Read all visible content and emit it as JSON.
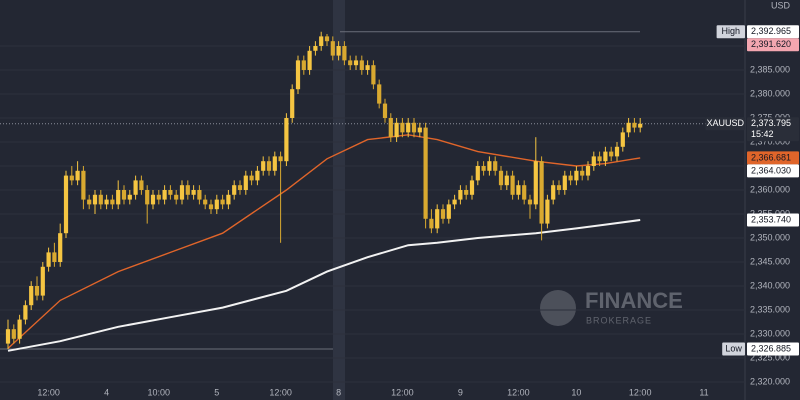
{
  "chart_data": {
    "type": "candlestick",
    "currency": "USD",
    "categories": [
      null,
      null,
      null,
      null,
      null,
      null,
      null,
      "12:00",
      null,
      null,
      null,
      null,
      null,
      null,
      null,
      null,
      null,
      "4",
      null,
      null,
      null,
      null,
      null,
      null,
      null,
      null,
      "10:00",
      null,
      null,
      null,
      null,
      null,
      null,
      null,
      null,
      null,
      "5",
      null,
      null,
      null,
      null,
      null,
      null,
      null,
      null,
      null,
      null,
      "12:00",
      null,
      null,
      null,
      null,
      null,
      null,
      null,
      null,
      null,
      "8",
      null,
      null,
      null,
      null,
      null,
      null,
      null,
      null,
      null,
      null,
      "12:00",
      null,
      null,
      null,
      null,
      null,
      null,
      null,
      null,
      null,
      "9",
      null,
      null,
      null,
      null,
      null,
      null,
      null,
      null,
      null,
      "12:00",
      null,
      null,
      null,
      null,
      null,
      null,
      null,
      null,
      null,
      "10",
      null,
      null,
      null,
      null,
      null,
      null,
      null,
      null,
      null,
      null,
      "12:00",
      null,
      null,
      null,
      null,
      null,
      null,
      null,
      null,
      null,
      null,
      "11"
    ],
    "open": [
      2328,
      2331,
      2329,
      2333,
      2336,
      2340,
      2338,
      2344,
      2347,
      2345,
      2351,
      2363,
      2362,
      2364,
      2358,
      2357,
      2359,
      2357,
      2358,
      2357,
      2360,
      2358,
      2359,
      2362,
      2360,
      2357,
      2359,
      2358,
      2360,
      2359,
      2358,
      2361,
      2359,
      2360,
      2358,
      2357,
      2356,
      2358,
      2357,
      2359,
      2361,
      2360,
      2363,
      2362,
      2364,
      2366,
      2364,
      2367,
      2366,
      2375,
      2381,
      2387,
      2385,
      2389,
      2390,
      2392,
      2391,
      2388,
      2390,
      2387,
      2386,
      2387,
      2385,
      2386,
      2382,
      2378,
      2375,
      2371,
      2374,
      2372,
      2374,
      2372,
      2373,
      2354,
      2352,
      2356,
      2354,
      2357,
      2358,
      2360,
      2359,
      2362,
      2365,
      2364,
      2366,
      2364,
      2361,
      2363,
      2359,
      2361,
      2358,
      2357,
      2366,
      2353,
      2358,
      2361,
      2360,
      2363,
      2362,
      2364,
      2363,
      2365,
      2367,
      2366,
      2368,
      2367,
      2369,
      2372,
      2374,
      2373,
      null,
      null,
      null,
      null,
      null,
      null,
      null,
      null,
      null,
      null,
      null
    ],
    "high": [
      2333,
      2332,
      2334,
      2337,
      2341,
      2342,
      2345,
      2348,
      2349,
      2353,
      2364,
      2365,
      2366,
      2365,
      2359,
      2360,
      2360,
      2359,
      2359,
      2362,
      2361,
      2360,
      2363,
      2363,
      2361,
      2360,
      2360,
      2361,
      2361,
      2360,
      2362,
      2362,
      2361,
      2361,
      2359,
      2358,
      2359,
      2359,
      2360,
      2362,
      2362,
      2364,
      2364,
      2365,
      2367,
      2367,
      2368,
      2368,
      2376,
      2382,
      2388,
      2388,
      2390,
      2391,
      2392.965,
      2392.5,
      2392,
      2391,
      2391,
      2388,
      2388,
      2388,
      2387,
      2387,
      2383,
      2379,
      2376,
      2375,
      2375,
      2375,
      2375,
      2374,
      2374,
      2356,
      2357,
      2357,
      2358,
      2359,
      2361,
      2361,
      2363,
      2366,
      2366,
      2367,
      2367,
      2365,
      2364,
      2364,
      2362,
      2362,
      2359,
      2371,
      2367,
      2359,
      2362,
      2362,
      2364,
      2364,
      2365,
      2365,
      2366,
      2368,
      2368,
      2369,
      2369,
      2370,
      2373,
      2375,
      2375,
      2375,
      null,
      null,
      null,
      null,
      null,
      null,
      null,
      null,
      null,
      null,
      null
    ],
    "low": [
      2326.885,
      2328,
      2328,
      2332,
      2335,
      2337,
      2337,
      2343,
      2344,
      2344,
      2350,
      2361,
      2361,
      2356,
      2356,
      2355,
      2356,
      2356,
      2356,
      2356,
      2357,
      2357,
      2358,
      2359,
      2353,
      2356,
      2357,
      2357,
      2358,
      2357,
      2357,
      2358,
      2358,
      2357,
      2356,
      2355,
      2355,
      2356,
      2356,
      2358,
      2359,
      2359,
      2361,
      2361,
      2363,
      2363,
      2363,
      2349,
      2365,
      2374,
      2380,
      2384,
      2384,
      2388,
      2389,
      2390,
      2387,
      2387,
      2386,
      2385,
      2385,
      2384,
      2384,
      2381,
      2377,
      2374,
      2370,
      2370,
      2371,
      2371,
      2371,
      2371,
      2352,
      2351,
      2351,
      2353,
      2353,
      2356,
      2357,
      2358,
      2358,
      2361,
      2363,
      2363,
      2363,
      2360,
      2360,
      2358,
      2358,
      2357,
      2354,
      2356,
      2349.5,
      2352,
      2357,
      2359,
      2359,
      2361,
      2361,
      2362,
      2362,
      2364,
      2365,
      2365,
      2366,
      2366,
      2368,
      2371,
      2372,
      2372,
      null,
      null,
      null,
      null,
      null,
      null,
      null,
      null,
      null,
      null,
      null
    ],
    "close": [
      2331,
      2329,
      2333,
      2336,
      2340,
      2338,
      2344,
      2347,
      2345,
      2351,
      2363,
      2362,
      2364,
      2358,
      2357,
      2359,
      2357,
      2358,
      2357,
      2360,
      2358,
      2359,
      2362,
      2360,
      2357,
      2359,
      2358,
      2360,
      2359,
      2358,
      2361,
      2359,
      2360,
      2358,
      2357,
      2356,
      2358,
      2357,
      2359,
      2361,
      2360,
      2363,
      2362,
      2364,
      2366,
      2364,
      2367,
      2366,
      2375,
      2381,
      2387,
      2385,
      2389,
      2390,
      2392,
      2391,
      2388,
      2390,
      2387,
      2386,
      2387,
      2385,
      2386,
      2382,
      2378,
      2375,
      2371,
      2374,
      2372,
      2374,
      2372,
      2373,
      2354,
      2352,
      2356,
      2354,
      2357,
      2358,
      2360,
      2359,
      2362,
      2365,
      2364,
      2366,
      2364,
      2361,
      2363,
      2359,
      2361,
      2358,
      2357,
      2366,
      2353,
      2358,
      2361,
      2360,
      2363,
      2362,
      2364,
      2363,
      2365,
      2367,
      2366,
      2368,
      2367,
      2369,
      2372,
      2374,
      2373,
      2373.795,
      null,
      null,
      null,
      null,
      null,
      null,
      null,
      null,
      null,
      null,
      null
    ],
    "up_color": "#f5c542",
    "down_color": "#d9a930",
    "moving_averages": [
      {
        "color": "#e0652a",
        "x": [
          0,
          9,
          19,
          28,
          37,
          48,
          55,
          62,
          69,
          74,
          81,
          91,
          98,
          103,
          109
        ],
        "values": [
          2327,
          2337,
          2343,
          2347,
          2351,
          2360,
          2366.5,
          2370.5,
          2371.5,
          2370.5,
          2368,
          2366,
          2365,
          2365.5,
          2366.681
        ]
      },
      {
        "color": "#f2f2f2",
        "x": [
          0,
          9,
          19,
          28,
          37,
          48,
          55,
          62,
          69,
          74,
          81,
          91,
          98,
          103,
          109
        ],
        "values": [
          2326.5,
          2328.5,
          2331.5,
          2333.5,
          2335.5,
          2339,
          2343,
          2346,
          2348.5,
          2349,
          2350,
          2351,
          2352,
          2352.8,
          2353.74
        ]
      }
    ],
    "ylim": [
      2316.25,
      2399.58
    ],
    "yticks": [
      {
        "value": 2320,
        "label": "2,320.000"
      },
      {
        "value": 2325,
        "label": "2,325.000"
      },
      {
        "value": 2330,
        "label": "2,330.000"
      },
      {
        "value": 2335,
        "label": "2,335.000"
      },
      {
        "value": 2340,
        "label": "2,340.000"
      },
      {
        "value": 2345,
        "label": "2,345.000"
      },
      {
        "value": 2350,
        "label": "2,350.000"
      },
      {
        "value": 2355,
        "label": "2,355.000"
      },
      {
        "value": 2360,
        "label": "2,360.000"
      },
      {
        "value": 2365,
        "label": "2,365.000"
      },
      {
        "value": 2370,
        "label": "2,370.000"
      },
      {
        "value": 2375,
        "label": "2,375.000"
      },
      {
        "value": 2380,
        "label": "2,380.000"
      },
      {
        "value": 2385,
        "label": "2,385.000"
      },
      {
        "value": 2390,
        "label": "2,390.000"
      }
    ],
    "grid": true,
    "price_labels": [
      {
        "name": "High",
        "value": 2392.965,
        "label": "2,392.965",
        "color": "#ffffff",
        "text_color": "#131722"
      },
      {
        "value": 2391.62,
        "label": "2,391.620",
        "color": "#f3a6b0",
        "text_color": "#131722"
      },
      {
        "name": "XAUUSD",
        "value": 2373.795,
        "label": "2,373.795",
        "countdown": "15:42",
        "color": "#2a2e39",
        "text_color": "#ffffff"
      },
      {
        "value": 2366.681,
        "label": "2,366.681",
        "color": "#e0652a",
        "text_color": "#131722"
      },
      {
        "value": 2364.03,
        "label": "2,364.030",
        "color": "#ffffff",
        "text_color": "#131722"
      },
      {
        "value": 2353.74,
        "label": "2,353.740",
        "color": "#ffffff",
        "text_color": "#131722"
      },
      {
        "name": "Low",
        "value": 2326.885,
        "label": "2,326.885",
        "color": "#ffffff",
        "text_color": "#131722"
      }
    ],
    "watermark": {
      "title": "FINANCE",
      "subtitle": "BROKERAGE"
    }
  }
}
